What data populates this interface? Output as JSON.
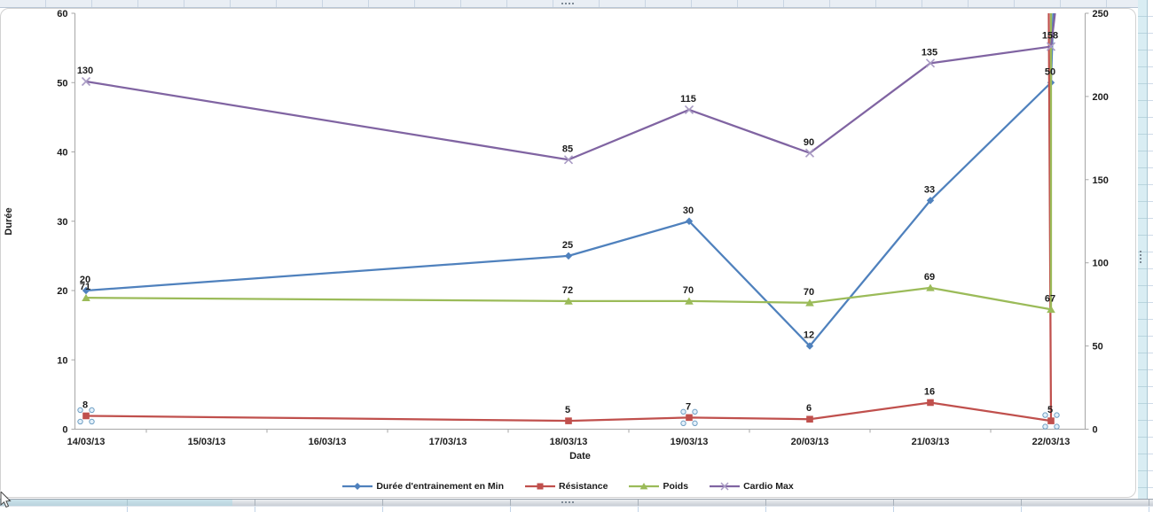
{
  "chart_data": {
    "type": "line",
    "subtype": "stacked-lines-with-markers (Excel worksheet chart)",
    "categories": [
      "14/03/13",
      "15/03/13",
      "16/03/13",
      "17/03/13",
      "18/03/13",
      "19/03/13",
      "20/03/13",
      "21/03/13",
      "22/03/13"
    ],
    "point_dates": [
      "14/03/13",
      "18/03/13",
      "19/03/13",
      "20/03/13",
      "21/03/13",
      "22/03/13"
    ],
    "x_axis": {
      "title": "Date"
    },
    "left_axis": {
      "title": "Durée",
      "min": 0,
      "max": 60,
      "step": 10
    },
    "right_axis": {
      "title": "",
      "min": 0,
      "max": 250,
      "step": 50
    },
    "grid": "off",
    "legend_position": "bottom",
    "series": [
      {
        "name": "Durée d'entrainement en Min",
        "color": "#4F81BD",
        "marker": "diamond",
        "axis": "left",
        "stacked": false,
        "values": [
          20,
          25,
          30,
          12,
          33,
          50
        ],
        "offscale_continuation": true
      },
      {
        "name": "Résistance",
        "color": "#C0504D",
        "marker": "square",
        "axis": "right",
        "stacked": true,
        "values": [
          8,
          5,
          7,
          6,
          16,
          5
        ],
        "selected_point_indices": [
          0,
          2,
          5
        ],
        "offscale_continuation": true
      },
      {
        "name": "Poids",
        "color": "#9BBB59",
        "marker": "triangle",
        "axis": "right",
        "stacked": true,
        "values": [
          71,
          72,
          70,
          70,
          69,
          67
        ],
        "offscale_continuation": true
      },
      {
        "name": "Cardio Max",
        "color": "#8064A2",
        "marker": "x",
        "marker_color": "#A99BC4",
        "axis": "right",
        "stacked": true,
        "values": [
          130,
          85,
          115,
          90,
          135,
          158
        ],
        "offscale_continuation": true
      }
    ]
  },
  "ui": {
    "chart_selected": true,
    "selected_series": "Résistance",
    "selected_point_dates": [
      "14/03/13",
      "19/03/13",
      "22/03/13"
    ],
    "cursor": "arrow-cursor",
    "handle_icon": "selection-dots-icon"
  },
  "colors": {
    "axis_line": "#a6a6a6",
    "label_text": "#1c1c1c",
    "selection_handle_fill": "#e3f0fa",
    "selection_handle_stroke": "#6f9fc4"
  }
}
